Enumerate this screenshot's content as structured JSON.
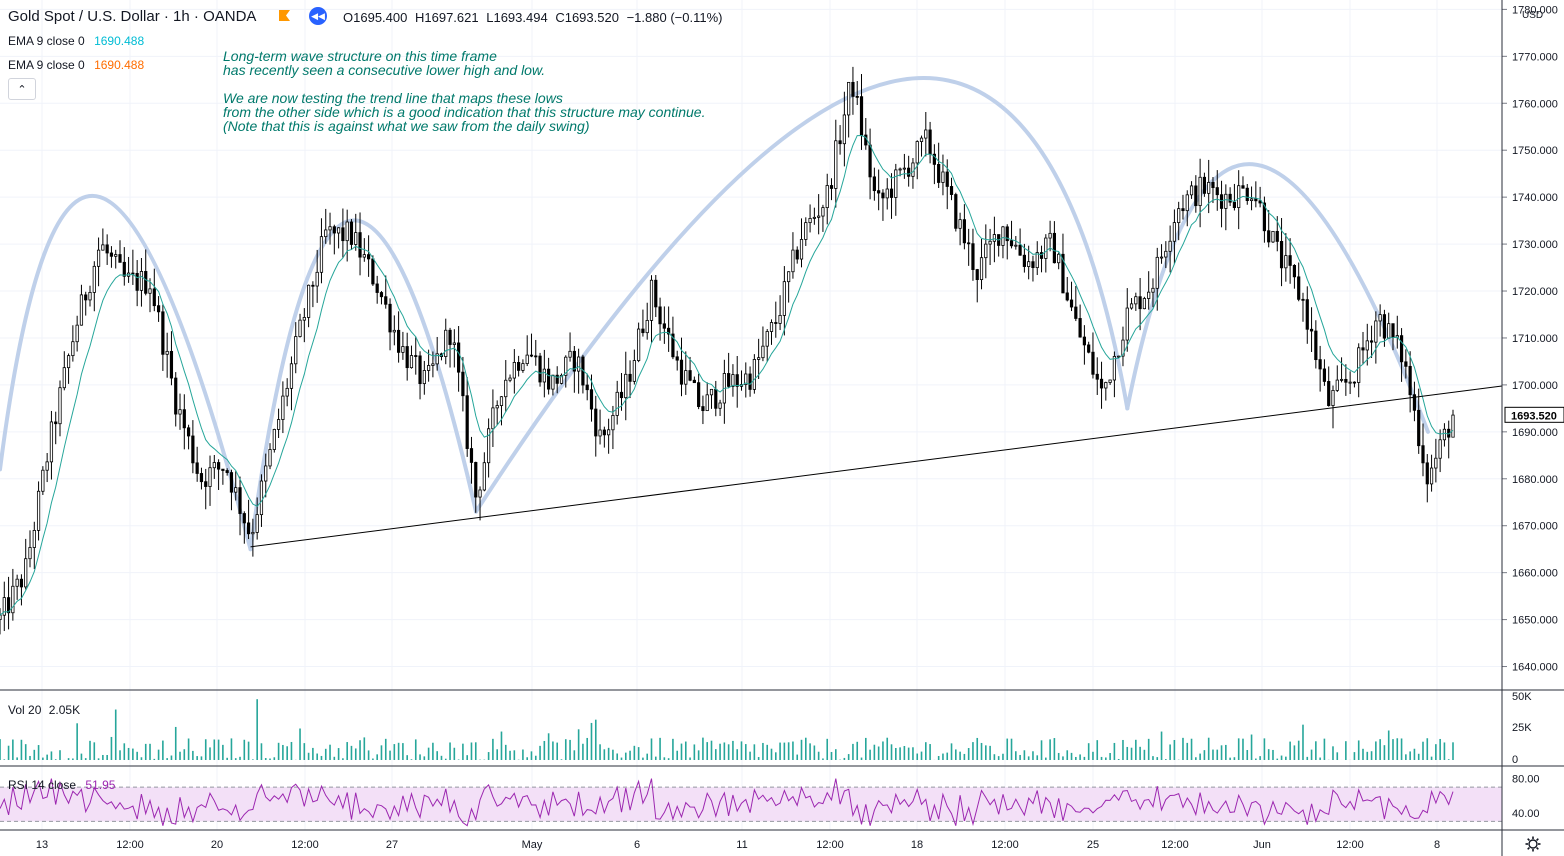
{
  "header": {
    "symbol": "Gold Spot / U.S. Dollar · 1h · OANDA",
    "open_label": "O",
    "open": "1695.400",
    "high_label": "H",
    "high": "1697.621",
    "low_label": "L",
    "low": "1693.494",
    "close_label": "C",
    "close": "1693.520",
    "change": "−1.880 (−0.11%)"
  },
  "indicators": [
    {
      "label": "EMA 9 close 0",
      "value": "1690.488",
      "color": "#00bcd4"
    },
    {
      "label": "EMA 9 close 0",
      "value": "1690.488",
      "color": "#ff6d00"
    }
  ],
  "annotation": "Long-term wave structure on this time frame\nhas recently seen a consecutive lower high and low.\n\nWe are now testing the trend line that maps these lows\nfrom the other side which is a good indication that this structure may continue.\n(Note that this is against what we saw from the daily swing)",
  "price_axis": {
    "currency": "USD",
    "ticks": [
      "1780.000",
      "1770.000",
      "1760.000",
      "1750.000",
      "1740.000",
      "1730.000",
      "1720.000",
      "1710.000",
      "1700.000",
      "1690.000",
      "1680.000",
      "1670.000",
      "1660.000",
      "1650.000",
      "1640.000"
    ],
    "last_price": "1693.520"
  },
  "volume_pane": {
    "label": "Vol 20",
    "value": "2.05K",
    "ticks": [
      "50K",
      "25K",
      "0"
    ]
  },
  "rsi_pane": {
    "label": "RSI 14 close",
    "value": "51.95",
    "ticks": [
      "80.00",
      "40.00"
    ],
    "color": "#9c27b0"
  },
  "time_axis": [
    "13",
    "12:00",
    "20",
    "12:00",
    "27",
    "May",
    "6",
    "11",
    "12:00",
    "18",
    "12:00",
    "25",
    "12:00",
    "Jun",
    "12:00",
    "8"
  ],
  "colors": {
    "candle": "#000000",
    "ema": "#26a69a",
    "wave": "#bfd0ea",
    "trendline": "#000000",
    "annotation": "#00796b",
    "rsi_band": "#f3e0f7",
    "volume": "#26a69a"
  },
  "chart_data": {
    "type": "candlestick",
    "title": "Gold Spot / U.S. Dollar · 1h · OANDA",
    "ylim": [
      1635,
      1782
    ],
    "x_range": [
      "Apr 12",
      "Jun 9"
    ],
    "price_path": [
      {
        "x": "Apr 12",
        "y": 1650
      },
      {
        "x": "Apr 13",
        "y": 1660
      },
      {
        "x": "Apr 14",
        "y": 1688
      },
      {
        "x": "Apr 15",
        "y": 1712
      },
      {
        "x": "Apr 16",
        "y": 1730
      },
      {
        "x": "Apr 17",
        "y": 1722
      },
      {
        "x": "Apr 18",
        "y": 1722
      },
      {
        "x": "Apr 19",
        "y": 1697
      },
      {
        "x": "Apr 20",
        "y": 1680
      },
      {
        "x": "Apr 21",
        "y": 1683
      },
      {
        "x": "Apr 22",
        "y": 1668
      },
      {
        "x": "Apr 23",
        "y": 1690
      },
      {
        "x": "Apr 24",
        "y": 1712
      },
      {
        "x": "Apr 25",
        "y": 1732
      },
      {
        "x": "Apr 26",
        "y": 1732
      },
      {
        "x": "Apr 27",
        "y": 1722
      },
      {
        "x": "Apr 28",
        "y": 1708
      },
      {
        "x": "Apr 29",
        "y": 1700
      },
      {
        "x": "Apr 30",
        "y": 1712
      },
      {
        "x": "May 1",
        "y": 1676
      },
      {
        "x": "May 2",
        "y": 1700
      },
      {
        "x": "May 3",
        "y": 1708
      },
      {
        "x": "May 4",
        "y": 1700
      },
      {
        "x": "May 5",
        "y": 1706
      },
      {
        "x": "May 6",
        "y": 1688
      },
      {
        "x": "May 7",
        "y": 1700
      },
      {
        "x": "May 8",
        "y": 1720
      },
      {
        "x": "May 9",
        "y": 1705
      },
      {
        "x": "May 10",
        "y": 1695
      },
      {
        "x": "May 11",
        "y": 1700
      },
      {
        "x": "May 12",
        "y": 1702
      },
      {
        "x": "May 13",
        "y": 1714
      },
      {
        "x": "May 14",
        "y": 1732
      },
      {
        "x": "May 15",
        "y": 1740
      },
      {
        "x": "May 16",
        "y": 1765
      },
      {
        "x": "May 17",
        "y": 1738
      },
      {
        "x": "May 18",
        "y": 1745
      },
      {
        "x": "May 19",
        "y": 1752
      },
      {
        "x": "May 20",
        "y": 1738
      },
      {
        "x": "May 21",
        "y": 1724
      },
      {
        "x": "May 22",
        "y": 1734
      },
      {
        "x": "May 23",
        "y": 1726
      },
      {
        "x": "May 24",
        "y": 1730
      },
      {
        "x": "May 25",
        "y": 1712
      },
      {
        "x": "May 26",
        "y": 1698
      },
      {
        "x": "May 27",
        "y": 1715
      },
      {
        "x": "May 28",
        "y": 1722
      },
      {
        "x": "May 29",
        "y": 1738
      },
      {
        "x": "May 30",
        "y": 1742
      },
      {
        "x": "May 31",
        "y": 1740
      },
      {
        "x": "Jun 1",
        "y": 1742
      },
      {
        "x": "Jun 2",
        "y": 1728
      },
      {
        "x": "Jun 3",
        "y": 1718
      },
      {
        "x": "Jun 4",
        "y": 1696
      },
      {
        "x": "Jun 5",
        "y": 1702
      },
      {
        "x": "Jun 6",
        "y": 1715
      },
      {
        "x": "Jun 7",
        "y": 1706
      },
      {
        "x": "Jun 8",
        "y": 1680
      },
      {
        "x": "Jun 9",
        "y": 1693.52
      }
    ],
    "trendline": [
      {
        "x": "Apr 22",
        "y": 1665.5
      },
      {
        "x": "Jun 9",
        "y": 1697.2
      }
    ],
    "wave_arcs": [
      [
        {
          "x": "Apr 12",
          "y": 1682
        },
        {
          "x": "Apr 16",
          "y": 1740
        },
        {
          "x": "Apr 22",
          "y": 1665
        }
      ],
      [
        {
          "x": "Apr 22",
          "y": 1665
        },
        {
          "x": "Apr 26",
          "y": 1735
        },
        {
          "x": "May 1",
          "y": 1673
        }
      ],
      [
        {
          "x": "May 1",
          "y": 1673
        },
        {
          "x": "May 18",
          "y": 1765
        },
        {
          "x": "May 27",
          "y": 1695
        }
      ],
      [
        {
          "x": "May 27",
          "y": 1695
        },
        {
          "x": "Jun 1",
          "y": 1747
        },
        {
          "x": "Jun 8",
          "y": 1690
        }
      ]
    ]
  }
}
